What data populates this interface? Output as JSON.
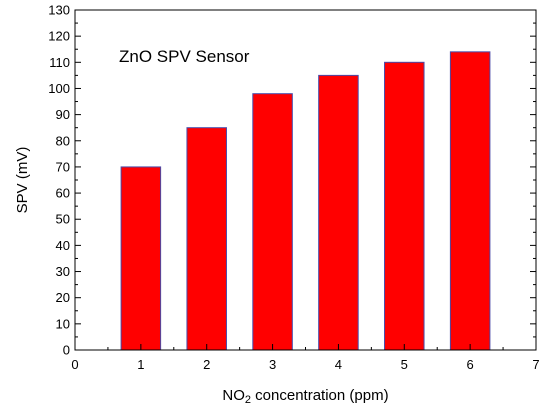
{
  "chart_data": {
    "type": "bar",
    "annotation": "ZnO SPV Sensor",
    "xlabel_main": "NO",
    "xlabel_sub": "2",
    "xlabel_rest": " concentration (ppm)",
    "ylabel": "SPV (mV)",
    "x": [
      1,
      2,
      3,
      4,
      5,
      6
    ],
    "values": [
      70,
      85,
      98,
      105,
      110,
      114
    ],
    "xlim": [
      0,
      7
    ],
    "ylim": [
      0,
      130
    ],
    "xticks": [
      "0",
      "1",
      "2",
      "3",
      "4",
      "5",
      "6",
      "7"
    ],
    "yticks": [
      "0",
      "10",
      "20",
      "30",
      "40",
      "50",
      "60",
      "70",
      "80",
      "90",
      "100",
      "110",
      "120",
      "130"
    ],
    "bar_color": "#ff0000",
    "bar_edge_color": "#4a4aa8",
    "grid": false,
    "legend": "none"
  }
}
